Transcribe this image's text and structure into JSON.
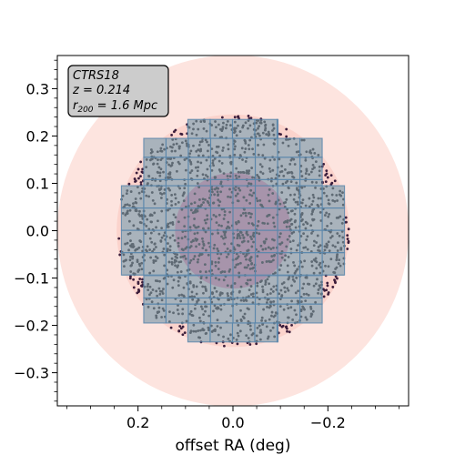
{
  "chart_data": {
    "type": "scatter",
    "xlabel": "offset RA (deg)",
    "ylabel": "",
    "x_inverted": true,
    "xlim": [
      0.37,
      -0.37
    ],
    "ylim": [
      -0.37,
      0.37
    ],
    "x_ticks": [
      0.2,
      0.0,
      -0.2
    ],
    "x_tick_labels": [
      "0.2",
      "0.0",
      "−0.2"
    ],
    "y_ticks": [
      0.3,
      0.2,
      0.1,
      0.0,
      -0.1,
      -0.2,
      -0.3
    ],
    "y_tick_labels": [
      "0.3",
      "0.2",
      "0.1",
      "0.0",
      "−0.1",
      "−0.2",
      "−0.3"
    ],
    "grid": false,
    "annotation": {
      "name": "CTRS18",
      "redshift": "z = 0.214",
      "r200_prefix": "r",
      "r200_sub": "200",
      "r200_suffix": " = 1.6 Mpc"
    },
    "regions": {
      "outer_circle": {
        "center": [
          0.0,
          0.0
        ],
        "radius": 0.37,
        "color": "#fde4df"
      },
      "inner_circle": {
        "center": [
          0.0,
          0.0
        ],
        "radius": 0.245,
        "color": "#fbd3cc"
      },
      "core_circle": {
        "center": [
          0.0,
          0.0
        ],
        "radius": 0.122,
        "color": "#a57a9c"
      }
    },
    "tile_rows": [
      {
        "y": [
          0.195,
          0.235
        ],
        "x": [
          0.095,
          -0.095
        ]
      },
      {
        "y": [
          0.155,
          0.195
        ],
        "x": [
          0.188,
          -0.188
        ]
      },
      {
        "y": [
          0.095,
          0.155
        ],
        "x": [
          0.188,
          -0.188
        ]
      },
      {
        "y": [
          -0.095,
          0.095
        ],
        "x": [
          0.235,
          -0.235
        ]
      },
      {
        "y": [
          -0.155,
          -0.095
        ],
        "x": [
          0.188,
          -0.188
        ]
      },
      {
        "y": [
          -0.195,
          -0.155
        ],
        "x": [
          0.188,
          -0.188
        ]
      },
      {
        "y": [
          -0.235,
          -0.195
        ],
        "x": [
          0.095,
          -0.095
        ]
      }
    ],
    "tile_color": "#a9b3bc",
    "tile_edge_color": "#5b87ab",
    "series": [
      {
        "point_color": "#3b1d3b",
        "points_in_tiles_color": "#5f6a74",
        "approx_count": 1700,
        "extent_radius": 0.245
      }
    ]
  }
}
